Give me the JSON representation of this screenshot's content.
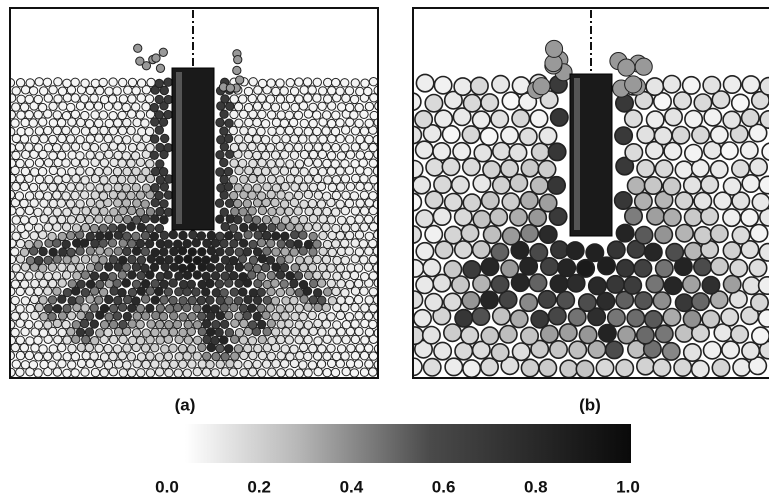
{
  "panels": [
    {
      "label": "(a)"
    },
    {
      "label": "(b)"
    }
  ],
  "colorbar": {
    "range": [
      0,
      1
    ],
    "ticks": [
      {
        "value": 0,
        "label": "0.0"
      },
      {
        "value": 0.2,
        "label": "0.2"
      },
      {
        "value": 0.4,
        "label": "0.4"
      },
      {
        "value": 0.6,
        "label": "0.6"
      },
      {
        "value": 0.8,
        "label": "0.8"
      },
      {
        "value": 1,
        "label": "1.0"
      }
    ]
  }
}
